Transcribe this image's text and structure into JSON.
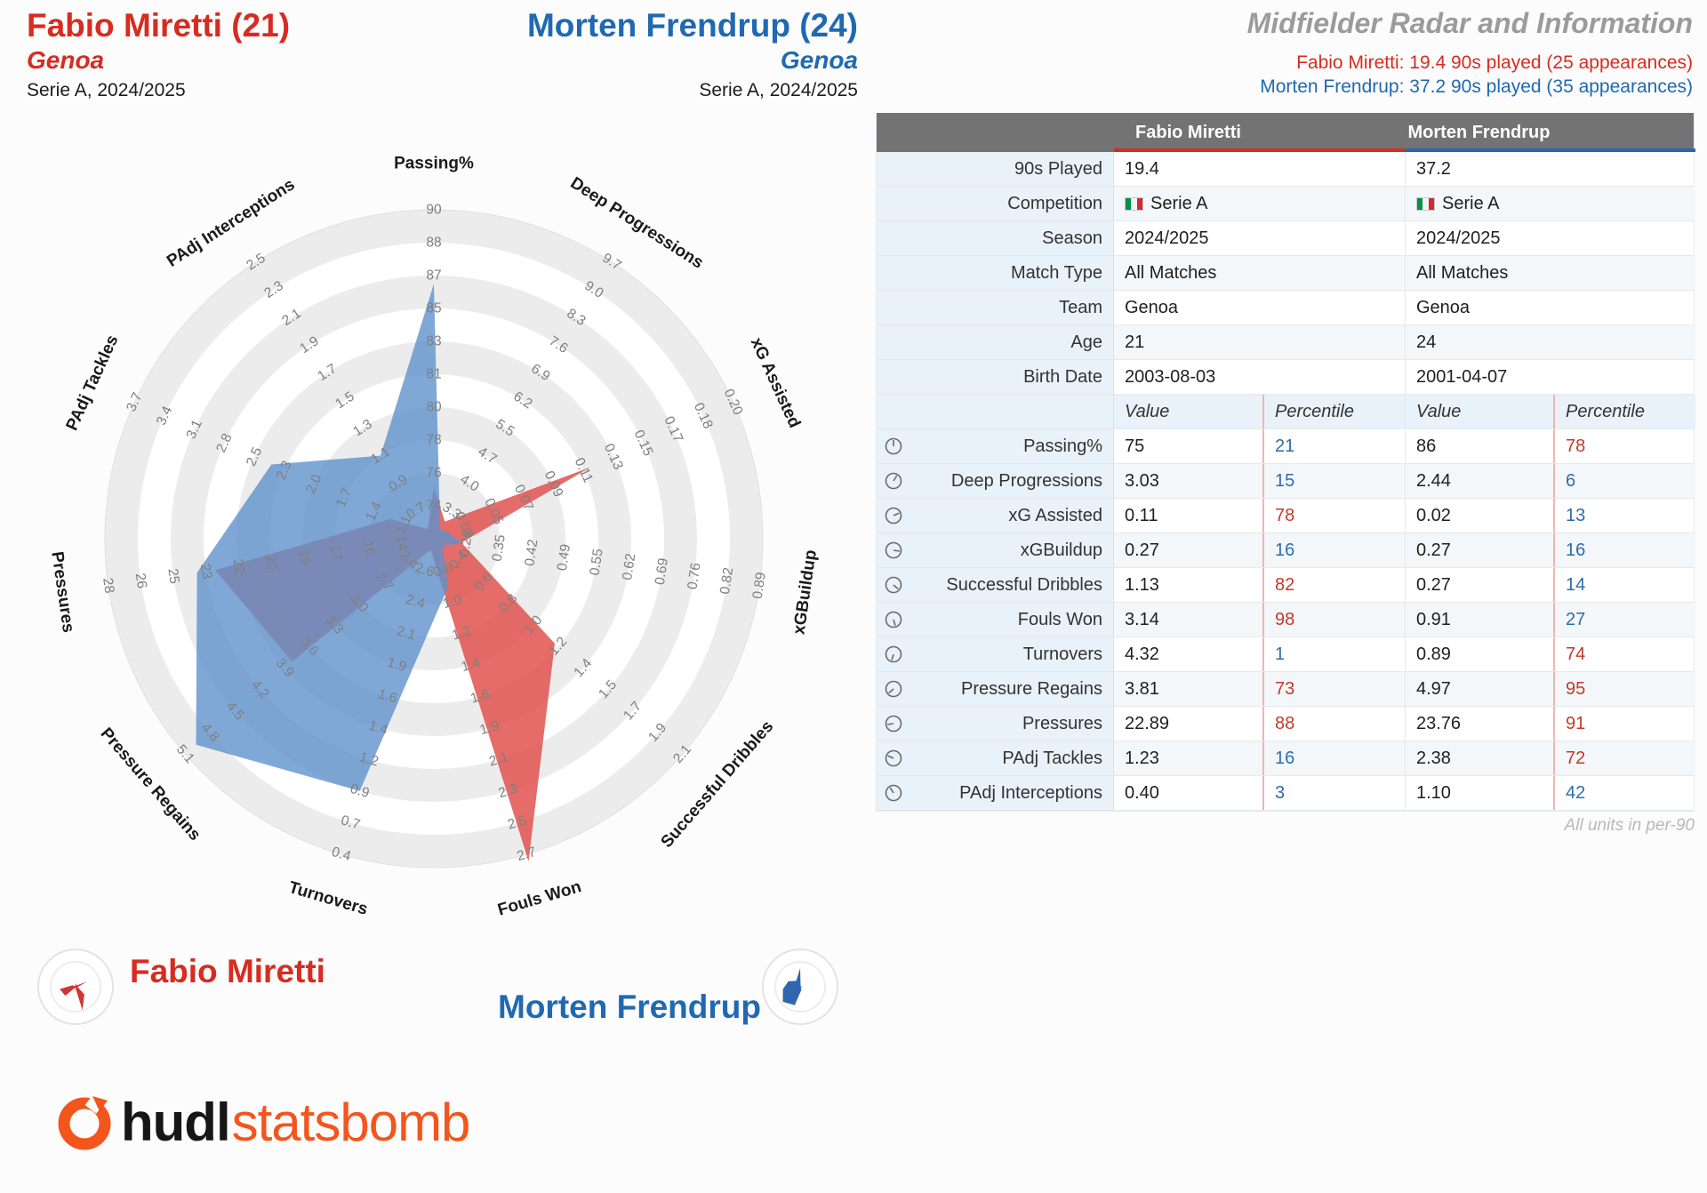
{
  "header": {
    "player1": {
      "name": "Fabio Miretti (21)",
      "team": "Genoa",
      "league": "Serie A, 2024/2025"
    },
    "player2": {
      "name": "Morten Frendrup (24)",
      "team": "Genoa",
      "league": "Serie A, 2024/2025"
    },
    "title": "Midfielder Radar and Information",
    "subtitle1": "Fabio Miretti: 19.4 90s played (25 appearances)",
    "subtitle2": "Morten Frendrup: 37.2 90s played (35 appearances)"
  },
  "colors": {
    "red": "#d62c21",
    "blue": "#2069b2",
    "radar_red": "#e0524e",
    "radar_blue": "#5f92cc",
    "pct_red": "#c23b2b",
    "pct_blue": "#2e6ca8",
    "glyph_red": "#cf3737",
    "glyph_blue": "#2e67ad",
    "orange": "#f4551c"
  },
  "chart_data": {
    "type": "radar",
    "title": "Midfielder Radar",
    "rings": 10,
    "players": [
      {
        "name": "Fabio Miretti",
        "color": "#e0524e",
        "values": [
          75,
          3.03,
          0.11,
          0.27,
          1.13,
          3.14,
          4.32,
          3.81,
          22.89,
          1.23,
          0.4
        ]
      },
      {
        "name": "Morten Frendrup",
        "color": "#5f92cc",
        "values": [
          86,
          2.44,
          0.02,
          0.27,
          0.27,
          0.91,
          0.89,
          4.97,
          23.76,
          2.38,
          1.1
        ]
      }
    ],
    "axes": [
      {
        "label": "Passing%",
        "ticks": [
          "74",
          "76",
          "78",
          "80",
          "81",
          "83",
          "85",
          "87",
          "88",
          "90"
        ]
      },
      {
        "label": "Deep Progressions",
        "ticks": [
          "3.3",
          "4.0",
          "4.7",
          "5.5",
          "6.2",
          "6.9",
          "7.6",
          "8.3",
          "9.0",
          "9.7"
        ]
      },
      {
        "label": "xG Assisted",
        "ticks": [
          "0.03",
          "0.05",
          "0.07",
          "0.09",
          "0.11",
          "0.13",
          "0.15",
          "0.17",
          "0.18",
          "0.20"
        ]
      },
      {
        "label": "xGBuildup",
        "ticks": [
          "0.28",
          "0.35",
          "0.42",
          "0.49",
          "0.55",
          "0.62",
          "0.69",
          "0.76",
          "0.82",
          "0.89"
        ]
      },
      {
        "label": "Successful Dribbles",
        "ticks": [
          "0.4",
          "0.6",
          "0.8",
          "1.0",
          "1.2",
          "1.4",
          "1.5",
          "1.7",
          "1.9",
          "2.1"
        ]
      },
      {
        "label": "Fouls Won",
        "ticks": [
          "0.8",
          "1.0",
          "1.2",
          "1.4",
          "1.6",
          "1.9",
          "2.1",
          "2.3",
          "2.5",
          "2.7"
        ]
      },
      {
        "label": "Turnovers",
        "ticks": [
          "2.6",
          "2.4",
          "2.1",
          "1.9",
          "1.6",
          "1.4",
          "1.2",
          "0.9",
          "0.7",
          "0.4"
        ]
      },
      {
        "label": "Pressure Regains",
        "ticks": [
          "2.4",
          "2.7",
          "3.0",
          "3.3",
          "3.6",
          "3.9",
          "4.2",
          "4.5",
          "4.8",
          "5.1"
        ]
      },
      {
        "label": "Pressures",
        "ticks": [
          "14",
          "16",
          "17",
          "19",
          "20",
          "22",
          "23",
          "25",
          "26",
          "28"
        ]
      },
      {
        "label": "PAdj Tackles",
        "ticks": [
          "1.1",
          "1.4",
          "1.7",
          "2.0",
          "2.3",
          "2.5",
          "2.8",
          "3.1",
          "3.4",
          "3.7"
        ]
      },
      {
        "label": "PAdj Interceptions",
        "ticks": [
          "0.7",
          "0.9",
          "1.1",
          "1.3",
          "1.5",
          "1.7",
          "1.9",
          "2.1",
          "2.3",
          "2.5"
        ]
      }
    ]
  },
  "table": {
    "col1": "Fabio Miretti",
    "col2": "Morten Frendrup",
    "info_rows": [
      {
        "label": "90s Played",
        "v1": "19.4",
        "v2": "37.2"
      },
      {
        "label": "Competition",
        "v1": "Serie A",
        "v2": "Serie A",
        "flag": true
      },
      {
        "label": "Season",
        "v1": "2024/2025",
        "v2": "2024/2025"
      },
      {
        "label": "Match Type",
        "v1": "All Matches",
        "v2": "All Matches"
      },
      {
        "label": "Team",
        "v1": "Genoa",
        "v2": "Genoa"
      },
      {
        "label": "Age",
        "v1": "21",
        "v2": "24"
      },
      {
        "label": "Birth Date",
        "v1": "2003-08-03",
        "v2": "2001-04-07"
      }
    ],
    "subheader": {
      "value": "Value",
      "percentile": "Percentile"
    },
    "stat_rows": [
      {
        "label": "Passing%",
        "v1": "75",
        "p1": 21,
        "v2": "86",
        "p2": 78
      },
      {
        "label": "Deep Progressions",
        "v1": "3.03",
        "p1": 15,
        "v2": "2.44",
        "p2": 6
      },
      {
        "label": "xG Assisted",
        "v1": "0.11",
        "p1": 78,
        "v2": "0.02",
        "p2": 13
      },
      {
        "label": "xGBuildup",
        "v1": "0.27",
        "p1": 16,
        "v2": "0.27",
        "p2": 16
      },
      {
        "label": "Successful Dribbles",
        "v1": "1.13",
        "p1": 82,
        "v2": "0.27",
        "p2": 14
      },
      {
        "label": "Fouls Won",
        "v1": "3.14",
        "p1": 98,
        "v2": "0.91",
        "p2": 27
      },
      {
        "label": "Turnovers",
        "v1": "4.32",
        "p1": 1,
        "v2": "0.89",
        "p2": 74
      },
      {
        "label": "Pressure Regains",
        "v1": "3.81",
        "p1": 73,
        "v2": "4.97",
        "p2": 95
      },
      {
        "label": "Pressures",
        "v1": "22.89",
        "p1": 88,
        "v2": "23.76",
        "p2": 91
      },
      {
        "label": "PAdj Tackles",
        "v1": "1.23",
        "p1": 16,
        "v2": "2.38",
        "p2": 72
      },
      {
        "label": "PAdj Interceptions",
        "v1": "0.40",
        "p1": 3,
        "v2": "1.10",
        "p2": 42
      }
    ],
    "footnote": "All units in per-90"
  },
  "legend": {
    "player1": "Fabio Miretti",
    "player2": "Morten Frendrup"
  },
  "logo": {
    "hudl": "hudl",
    "statsbomb": "statsbomb"
  }
}
